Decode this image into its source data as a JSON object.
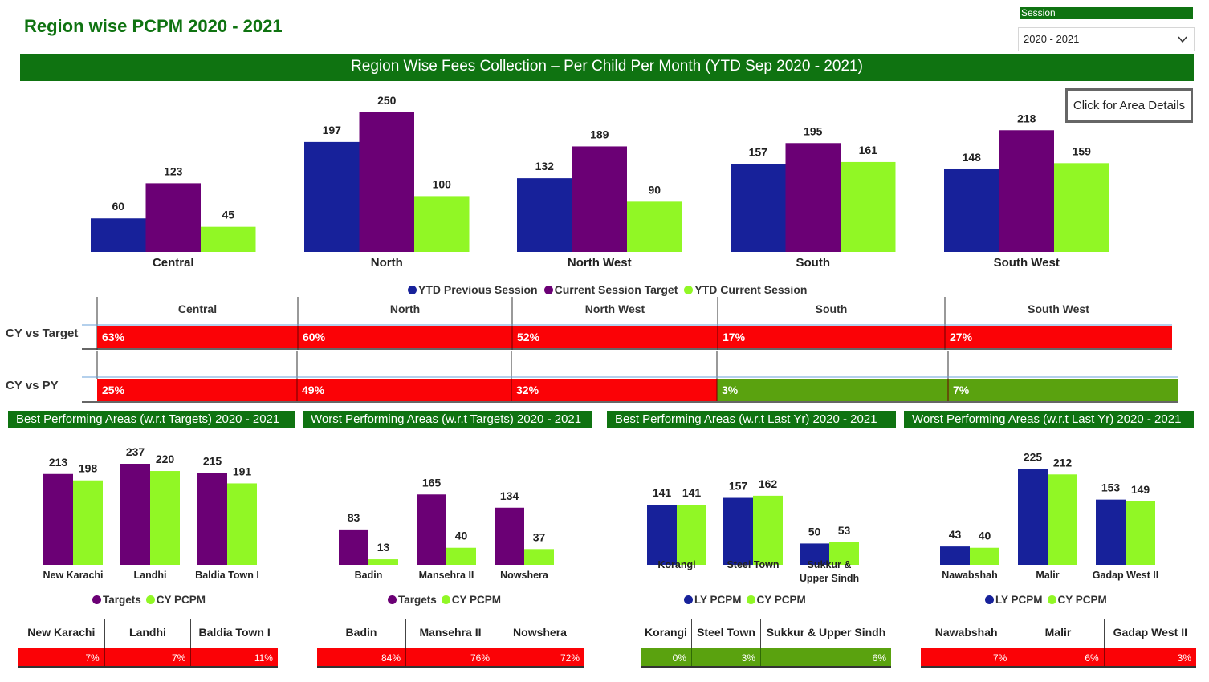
{
  "page": {
    "title": "Region wise PCPM 2020 - 2021",
    "session_label": "Session",
    "session_value": "2020 - 2021",
    "banner": "Region Wise Fees Collection –  Per Child Per Month (YTD Sep 2020 - 2021)",
    "area_button": "Click for Area Details"
  },
  "colors": {
    "green_header": "#0f7311",
    "navy": "#17219a",
    "purple": "#6b0075",
    "lime": "#91f725",
    "red": "#fb0206",
    "good_green": "#5aa20f"
  },
  "chart_data": [
    {
      "type": "bar",
      "categories": [
        "Central",
        "North",
        "North West",
        "South",
        "South West"
      ],
      "series": [
        {
          "name": "YTD Previous Session",
          "values": [
            60,
            197,
            132,
            157,
            148
          ]
        },
        {
          "name": "Current Session Target",
          "values": [
            123,
            250,
            189,
            195,
            218
          ]
        },
        {
          "name": "YTD Current Session",
          "values": [
            45,
            100,
            90,
            161,
            159
          ]
        }
      ],
      "legend": "bottom"
    },
    {
      "type": "table",
      "columns": [
        "Central",
        "North",
        "North West",
        "South",
        "South West"
      ],
      "rows": [
        {
          "label": "CY vs Target",
          "values": [
            "63%",
            "60%",
            "52%",
            "17%",
            "27%"
          ],
          "status": [
            "bad",
            "bad",
            "bad",
            "bad",
            "bad"
          ]
        },
        {
          "label": "CY vs PY",
          "values": [
            "25%",
            "49%",
            "32%",
            "3%",
            "7%"
          ],
          "status": [
            "bad",
            "bad",
            "bad",
            "good",
            "good"
          ]
        }
      ]
    },
    {
      "type": "bar",
      "title": "Best Performing Areas (w.r.t Targets) 2020 - 2021",
      "categories": [
        "New Karachi",
        "Landhi",
        "Baldia Town I"
      ],
      "series": [
        {
          "name": "Targets",
          "values": [
            213,
            237,
            215
          ]
        },
        {
          "name": "CY PCPM",
          "values": [
            198,
            220,
            191
          ]
        }
      ],
      "table": {
        "values": [
          "7%",
          "7%",
          "11%"
        ],
        "status": [
          "bad",
          "bad",
          "bad"
        ]
      }
    },
    {
      "type": "bar",
      "title": "Worst Performing Areas (w.r.t Targets) 2020 - 2021",
      "categories": [
        "Badin",
        "Mansehra II",
        "Nowshera"
      ],
      "series": [
        {
          "name": "Targets",
          "values": [
            83,
            165,
            134
          ]
        },
        {
          "name": "CY PCPM",
          "values": [
            13,
            40,
            37
          ]
        }
      ],
      "table": {
        "values": [
          "84%",
          "76%",
          "72%"
        ],
        "status": [
          "bad",
          "bad",
          "bad"
        ]
      }
    },
    {
      "type": "bar",
      "title": "Best Performing Areas (w.r.t Last Yr) 2020 - 2021",
      "categories": [
        "Korangi",
        "Steel Town",
        "Sukkur & Upper Sindh"
      ],
      "series": [
        {
          "name": "LY PCPM",
          "values": [
            141,
            157,
            50
          ]
        },
        {
          "name": "CY PCPM",
          "values": [
            141,
            162,
            53
          ]
        }
      ],
      "table": {
        "values": [
          "0%",
          "3%",
          "6%"
        ],
        "status": [
          "good",
          "good",
          "good"
        ]
      }
    },
    {
      "type": "bar",
      "title": "Worst Performing Areas (w.r.t Last Yr) 2020 - 2021",
      "categories": [
        "Nawabshah",
        "Malir",
        "Gadap West II"
      ],
      "series": [
        {
          "name": "LY PCPM",
          "values": [
            43,
            225,
            153
          ]
        },
        {
          "name": "CY PCPM",
          "values": [
            40,
            212,
            149
          ]
        }
      ],
      "table": {
        "values": [
          "7%",
          "6%",
          "3%"
        ],
        "status": [
          "bad",
          "bad",
          "bad"
        ]
      }
    }
  ]
}
